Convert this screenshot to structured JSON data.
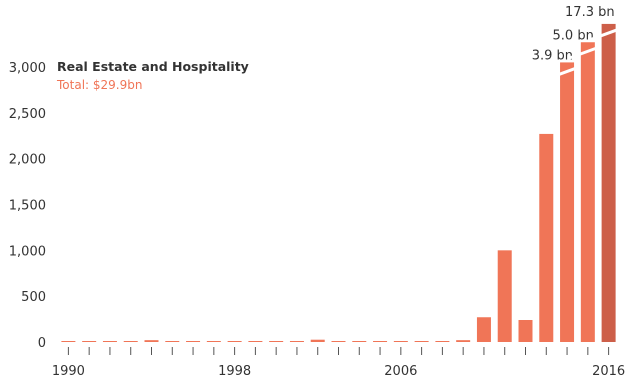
{
  "chart_data": {
    "type": "bar",
    "title": "",
    "xlabel": "",
    "ylabel": "",
    "series_name": "Real Estate and Hospitality",
    "total_label": "Total: $29.9bn",
    "x": [
      1990,
      1991,
      1992,
      1993,
      1994,
      1995,
      1996,
      1997,
      1998,
      1999,
      2000,
      2001,
      2002,
      2003,
      2004,
      2005,
      2006,
      2007,
      2008,
      2009,
      2010,
      2011,
      2012,
      2013,
      2014,
      2015,
      2016
    ],
    "values": [
      5,
      5,
      5,
      5,
      20,
      5,
      5,
      5,
      5,
      5,
      5,
      5,
      25,
      5,
      5,
      5,
      5,
      5,
      5,
      20,
      270,
      1000,
      240,
      2270,
      3050,
      3270,
      3470
    ],
    "actual_values_note_labels": [
      "",
      "",
      "",
      "",
      "",
      "",
      "",
      "",
      "",
      "",
      "",
      "",
      "",
      "",
      "",
      "",
      "",
      "",
      "",
      "",
      "",
      "",
      "",
      "",
      "3.9 bn",
      "5.0 bn",
      "17.3 bn"
    ],
    "ylim": [
      0,
      3500
    ],
    "yticks": [
      0,
      500,
      1000,
      1500,
      2000,
      2500,
      3000
    ],
    "ytick_labels": [
      "0",
      "500",
      "1,000",
      "1,500",
      "2,000",
      "2,500",
      "3,000"
    ],
    "xtick_labels": [
      "1990",
      "1998",
      "2006",
      "2016"
    ],
    "xtick_years": [
      1990,
      1998,
      2006,
      2016
    ],
    "grid": false,
    "legend_position": "top-left",
    "colors": {
      "bar": "#f07557",
      "highlight": "#cd5f49",
      "total": "#f07557",
      "axis_text": "#333333",
      "tick": "#555555"
    },
    "highlight_years": [
      2016
    ],
    "broken_bars": [
      2014,
      2015,
      2016
    ]
  }
}
